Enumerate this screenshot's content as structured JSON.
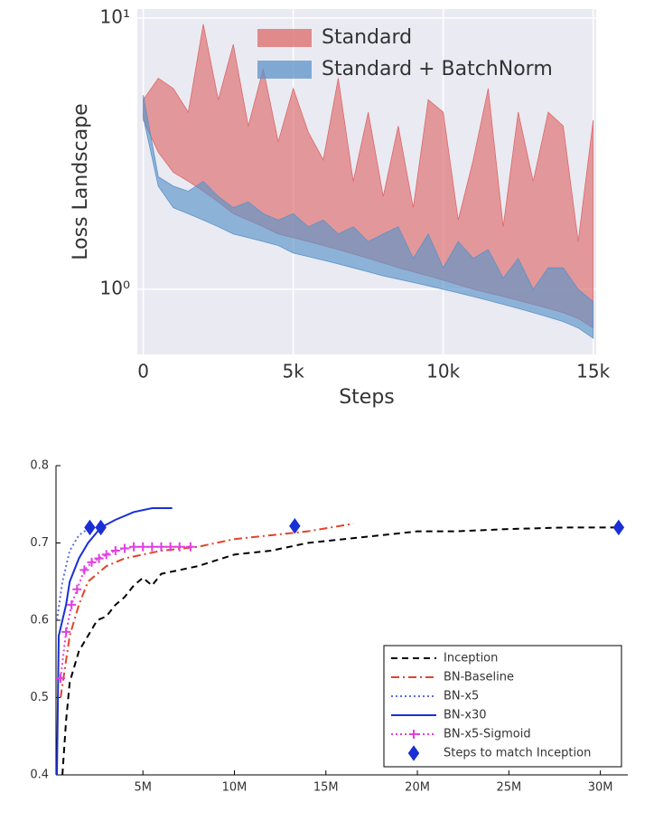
{
  "chart_data": [
    {
      "type": "area",
      "xlabel": "Steps",
      "ylabel": "Loss Landscape",
      "yscale": "log",
      "grid": true,
      "facecolor": "#eaeaf2",
      "legend": "upper center",
      "x": [
        0,
        500,
        1000,
        1500,
        2000,
        2500,
        3000,
        3500,
        4000,
        4500,
        5000,
        5500,
        6000,
        6500,
        7000,
        7500,
        8000,
        8500,
        9000,
        9500,
        10000,
        10500,
        11000,
        11500,
        12000,
        12500,
        13000,
        13500,
        14000,
        14500,
        15000
      ],
      "xlim": [
        -200,
        15100
      ],
      "xticks": [
        0,
        {
          "value": 5000,
          "label": "5k"
        },
        {
          "value": 10000,
          "label": "10k"
        },
        {
          "value": 15000,
          "label": "15k"
        }
      ],
      "ylim": [
        0.575,
        10.8
      ],
      "yticks": [
        {
          "value": 1,
          "label": "10⁰"
        },
        {
          "value": 10,
          "label": "10¹"
        }
      ],
      "series": [
        {
          "name": "Standard",
          "color": "#dd6a6a",
          "values": [
            5.0,
            6.0,
            5.5,
            4.5,
            9.5,
            5.0,
            8.0,
            4.0,
            6.5,
            3.5,
            5.5,
            3.8,
            3.0,
            6.0,
            2.5,
            4.5,
            2.2,
            4.0,
            2.0,
            5.0,
            4.5,
            1.8,
            3.0,
            5.5,
            1.7,
            4.5,
            2.5,
            4.5,
            4.0,
            1.5,
            4.2
          ],
          "lower": [
            4.2,
            3.2,
            2.7,
            2.5,
            2.3,
            2.1,
            1.9,
            1.8,
            1.7,
            1.6,
            1.55,
            1.5,
            1.45,
            1.4,
            1.35,
            1.3,
            1.25,
            1.2,
            1.16,
            1.12,
            1.08,
            1.04,
            1.0,
            0.97,
            0.94,
            0.91,
            0.88,
            0.85,
            0.82,
            0.78,
            0.72
          ]
        },
        {
          "name": "Standard + BatchNorm",
          "color": "#5b93c8",
          "values": [
            5.2,
            2.6,
            2.4,
            2.3,
            2.5,
            2.2,
            2.0,
            2.1,
            1.9,
            1.8,
            1.9,
            1.7,
            1.8,
            1.6,
            1.7,
            1.5,
            1.6,
            1.7,
            1.3,
            1.6,
            1.2,
            1.5,
            1.3,
            1.4,
            1.1,
            1.3,
            1.0,
            1.2,
            1.2,
            1.0,
            0.9
          ],
          "lower": [
            4.3,
            2.4,
            2.0,
            1.9,
            1.8,
            1.7,
            1.6,
            1.55,
            1.5,
            1.45,
            1.36,
            1.32,
            1.28,
            1.24,
            1.2,
            1.16,
            1.12,
            1.09,
            1.06,
            1.03,
            1.0,
            0.97,
            0.94,
            0.91,
            0.88,
            0.85,
            0.82,
            0.79,
            0.76,
            0.72,
            0.66
          ]
        }
      ]
    },
    {
      "type": "line",
      "grid": false,
      "legend": "lower right",
      "xlim": [
        250000,
        31500000
      ],
      "xticks": [
        {
          "value": 5000000,
          "label": "5M"
        },
        {
          "value": 10000000,
          "label": "10M"
        },
        {
          "value": 15000000,
          "label": "15M"
        },
        {
          "value": 20000000,
          "label": "20M"
        },
        {
          "value": 25000000,
          "label": "25M"
        },
        {
          "value": 30000000,
          "label": "30M"
        }
      ],
      "ylim": [
        0.4,
        0.8
      ],
      "yticks": [
        0.4,
        0.5,
        0.6,
        0.7,
        0.8
      ],
      "series": [
        {
          "name": "Inception",
          "color": "#000000",
          "dash": "dashed",
          "x": [
            600000,
            800000,
            1000000,
            1500000,
            2000000,
            2500000,
            3000000,
            3500000,
            4000000,
            4500000,
            5000000,
            5500000,
            6000000,
            7000000,
            8000000,
            10000000,
            12000000,
            14000000,
            16000000,
            18000000,
            20000000,
            22000000,
            25000000,
            28000000,
            31000000
          ],
          "values": [
            0.4,
            0.47,
            0.52,
            0.56,
            0.58,
            0.6,
            0.605,
            0.62,
            0.63,
            0.645,
            0.655,
            0.645,
            0.66,
            0.665,
            0.67,
            0.685,
            0.69,
            0.7,
            0.705,
            0.71,
            0.715,
            0.715,
            0.718,
            0.72,
            0.72
          ]
        },
        {
          "name": "BN-Baseline",
          "color": "#e0442a",
          "dash": "dashdot",
          "x": [
            500000,
            1000000,
            1500000,
            2000000,
            3000000,
            4000000,
            6000000,
            8000000,
            10000000,
            12000000,
            14000000,
            16500000
          ],
          "values": [
            0.5,
            0.58,
            0.62,
            0.65,
            0.67,
            0.68,
            0.69,
            0.695,
            0.705,
            0.71,
            0.715,
            0.725
          ]
        },
        {
          "name": "BN-x5",
          "color": "#5b6ee0",
          "dash": "dotted",
          "x": [
            300000,
            600000,
            1000000,
            1500000,
            2100000
          ],
          "values": [
            0.6,
            0.65,
            0.69,
            0.71,
            0.72
          ]
        },
        {
          "name": "BN-x30",
          "color": "#1a2fd6",
          "dash": "solid",
          "x": [
            300000,
            400000,
            600000,
            800000,
            1000000,
            1500000,
            2000000,
            2700000,
            3500000,
            4500000,
            5500000,
            6600000
          ],
          "values": [
            0.4,
            0.58,
            0.6,
            0.62,
            0.65,
            0.68,
            0.7,
            0.72,
            0.73,
            0.74,
            0.745,
            0.745
          ]
        },
        {
          "name": "BN-x5-Sigmoid",
          "color": "#e040e0",
          "dash": "dotted",
          "marker": "plus",
          "x": [
            500000,
            800000,
            1100000,
            1400000,
            1800000,
            2200000,
            2600000,
            3000000,
            3500000,
            4000000,
            4500000,
            5000000,
            5500000,
            6000000,
            6500000,
            7000000,
            7600000
          ],
          "values": [
            0.525,
            0.585,
            0.62,
            0.64,
            0.665,
            0.675,
            0.68,
            0.685,
            0.69,
            0.693,
            0.695,
            0.695,
            0.695,
            0.695,
            0.695,
            0.695,
            0.695
          ]
        },
        {
          "name": "Steps to match Inception",
          "color": "#1a2fd6",
          "dash": "none",
          "marker": "diamond",
          "x": [
            2100000,
            2700000,
            13300000,
            31000000
          ],
          "values": [
            0.72,
            0.72,
            0.722,
            0.72
          ]
        }
      ]
    }
  ]
}
